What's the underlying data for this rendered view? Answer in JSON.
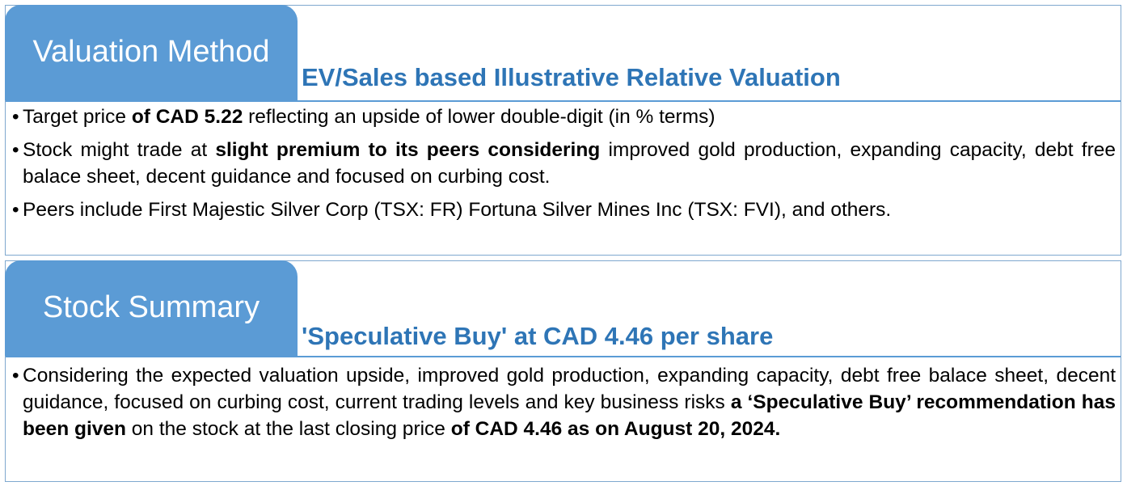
{
  "valuation": {
    "tab_label": "Valuation Method",
    "subtitle": "EV/Sales based Illustrative Relative Valuation",
    "bullet_char": "•",
    "bullets": [
      [
        {
          "t": "Target price ",
          "b": false
        },
        {
          "t": "of CAD 5.22",
          "b": true
        },
        {
          "t": " reflecting an upside of lower double-digit (in % terms)",
          "b": false
        }
      ],
      [
        {
          "t": "Stock might trade at ",
          "b": false
        },
        {
          "t": "slight premium to its peers considering",
          "b": true
        },
        {
          "t": "  improved gold production, expanding capacity, debt free balace sheet, decent guidance and focused on curbing cost.",
          "b": false
        }
      ],
      [
        {
          "t": "Peers include First Majestic Silver Corp (TSX: FR) Fortuna Silver Mines Inc (TSX: FVI), and others.",
          "b": false
        }
      ]
    ]
  },
  "summary": {
    "tab_label": "Stock Summary",
    "subtitle": "'Speculative Buy' at CAD 4.46 per share",
    "bullet_char": "•",
    "bullets": [
      [
        {
          "t": "Considering the expected valuation upside, improved gold production, expanding capacity, debt free balace sheet, decent guidance, focused on curbing cost, current trading levels and key business risks ",
          "b": false
        },
        {
          "t": "a ‘Speculative Buy’ recommendation has been given",
          "b": true
        },
        {
          "t": " on the stock at the last closing price ",
          "b": false
        },
        {
          "t": "of CAD 4.46 as on August 20, 2024.",
          "b": true
        }
      ]
    ]
  },
  "colors": {
    "tab_fill": "#5b9bd5",
    "subtitle_text": "#2e75b6",
    "border": "#7fa8cf"
  }
}
